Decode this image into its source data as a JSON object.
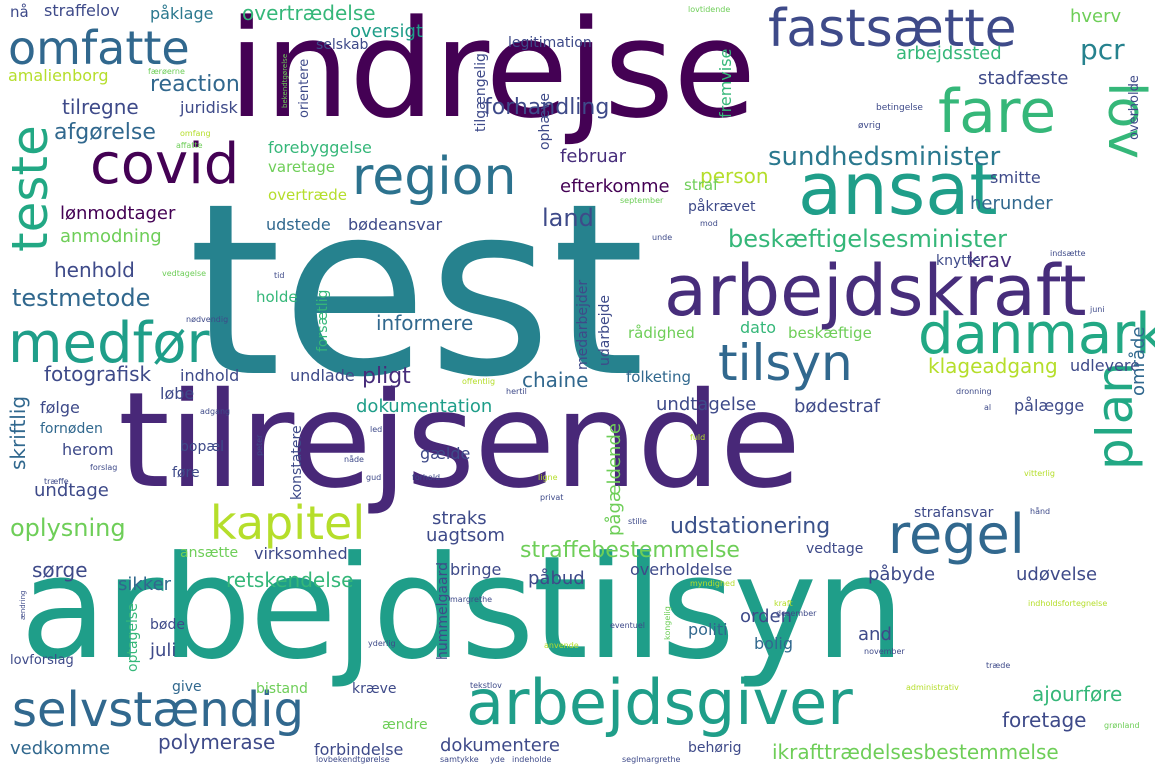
{
  "palette": {
    "purple": "#440154",
    "indigo": "#3e4a89",
    "blue": "#31688e",
    "teal": "#26828e",
    "green": "#1f9e89",
    "mint": "#35b779",
    "lime": "#6ece58",
    "yellow": "#b5de2b"
  },
  "words": [
    {
      "text": "test",
      "color": "#26828e"
    },
    {
      "text": "arbejdstilsyn",
      "color": "#1f9e89"
    },
    {
      "text": "tilrejsende",
      "color": "#482878"
    },
    {
      "text": "indrejse",
      "color": "#440154"
    },
    {
      "text": "arbejdskraft",
      "color": "#472d7b"
    },
    {
      "text": "ansat",
      "color": "#1f9e89"
    },
    {
      "text": "fastsætte",
      "color": "#3e4a89"
    },
    {
      "text": "omfatte",
      "color": "#31688e"
    },
    {
      "text": "covid",
      "color": "#440154"
    },
    {
      "text": "region",
      "color": "#2c728e"
    },
    {
      "text": "fare",
      "color": "#35b779"
    },
    {
      "text": "lov",
      "color": "#35b779"
    },
    {
      "text": "teste",
      "color": "#22a884"
    },
    {
      "text": "medfør",
      "color": "#1f9e89"
    },
    {
      "text": "danmark",
      "color": "#22a884"
    },
    {
      "text": "tilsyn",
      "color": "#31688e"
    },
    {
      "text": "plan",
      "color": "#22a884"
    },
    {
      "text": "regel",
      "color": "#31688e"
    },
    {
      "text": "kapitel",
      "color": "#b5de2b"
    },
    {
      "text": "arbejdsgiver",
      "color": "#1f9e89"
    },
    {
      "text": "selvstændig",
      "color": "#31688e"
    },
    {
      "text": "beskæftigelsesminister",
      "color": "#35b779"
    },
    {
      "text": "sundhedsminister",
      "color": "#2a788e"
    },
    {
      "text": "ikrafttrædelsesbestemmelse",
      "color": "#6ece58"
    },
    {
      "text": "straffebestemmelse",
      "color": "#6ece58"
    },
    {
      "text": "udstationering",
      "color": "#3b528b"
    },
    {
      "text": "forhandling",
      "color": "#3e4a89"
    },
    {
      "text": "overtrædelse",
      "color": "#35b779"
    },
    {
      "text": "pcr",
      "color": "#26828e"
    },
    {
      "text": "hverv",
      "color": "#6ece58"
    },
    {
      "text": "arbejdssted",
      "color": "#35b779"
    },
    {
      "text": "stadfæste",
      "color": "#3e4a89"
    },
    {
      "text": "reaction",
      "color": "#31688e"
    },
    {
      "text": "tilregne",
      "color": "#3e4a89"
    },
    {
      "text": "juridisk",
      "color": "#3e4a89"
    },
    {
      "text": "afgørelse",
      "color": "#31688e"
    },
    {
      "text": "oversigt",
      "color": "#1f9e89"
    },
    {
      "text": "legitimation",
      "color": "#3e4a89"
    },
    {
      "text": "påklage",
      "color": "#2a788e"
    },
    {
      "text": "straffelov",
      "color": "#3e4a89"
    },
    {
      "text": "nå",
      "color": "#3e4a89"
    },
    {
      "text": "selskab",
      "color": "#3e4a89"
    },
    {
      "text": "amalienborg",
      "color": "#b5de2b"
    },
    {
      "text": "forebyggelse",
      "color": "#35b779"
    },
    {
      "text": "varetage",
      "color": "#6ece58"
    },
    {
      "text": "februar",
      "color": "#472d7b"
    },
    {
      "text": "efterkomme",
      "color": "#440154"
    },
    {
      "text": "person",
      "color": "#b5de2b"
    },
    {
      "text": "smitte",
      "color": "#3e4a89"
    },
    {
      "text": "påkrævet",
      "color": "#3e4a89"
    },
    {
      "text": "herunder",
      "color": "#31688e"
    },
    {
      "text": "lønmodtager",
      "color": "#440154"
    },
    {
      "text": "udstede",
      "color": "#31688e"
    },
    {
      "text": "land",
      "color": "#3e4a89"
    },
    {
      "text": "bødeansvar",
      "color": "#3e4a89"
    },
    {
      "text": "anmodning",
      "color": "#6ece58"
    },
    {
      "text": "henhold",
      "color": "#3e4a89"
    },
    {
      "text": "testmetode",
      "color": "#31688e"
    },
    {
      "text": "krav",
      "color": "#472d7b"
    },
    {
      "text": "knytte",
      "color": "#3e4a89"
    },
    {
      "text": "informere",
      "color": "#31688e"
    },
    {
      "text": "holde",
      "color": "#35b779"
    },
    {
      "text": "dato",
      "color": "#35b779"
    },
    {
      "text": "rådighed",
      "color": "#6ece58"
    },
    {
      "text": "beskæftige",
      "color": "#6ece58"
    },
    {
      "text": "klageadgang",
      "color": "#b5de2b"
    },
    {
      "text": "udlevere",
      "color": "#3e4a89"
    },
    {
      "text": "fotografisk",
      "color": "#3e4a89"
    },
    {
      "text": "indhold",
      "color": "#3e4a89"
    },
    {
      "text": "undlade",
      "color": "#3e4a89"
    },
    {
      "text": "pligt",
      "color": "#472d7b"
    },
    {
      "text": "chaine",
      "color": "#31688e"
    },
    {
      "text": "folketing",
      "color": "#31688e"
    },
    {
      "text": "skriftlig",
      "color": "#31688e"
    },
    {
      "text": "løbe",
      "color": "#3e4a89"
    },
    {
      "text": "følge",
      "color": "#3e4a89"
    },
    {
      "text": "dokumentation",
      "color": "#1f9e89"
    },
    {
      "text": "undtagelse",
      "color": "#3e4a89"
    },
    {
      "text": "bødestraf",
      "color": "#3e4a89"
    },
    {
      "text": "pålægge",
      "color": "#3e4a89"
    },
    {
      "text": "område",
      "color": "#31688e"
    },
    {
      "text": "fornøden",
      "color": "#31688e"
    },
    {
      "text": "herom",
      "color": "#3e4a89"
    },
    {
      "text": "bopæl",
      "color": "#3e4a89"
    },
    {
      "text": "undtage",
      "color": "#3e4a89"
    },
    {
      "text": "oplysning",
      "color": "#6ece58"
    },
    {
      "text": "gælde",
      "color": "#3e4a89"
    },
    {
      "text": "føre",
      "color": "#3e4a89"
    },
    {
      "text": "straks",
      "color": "#3e4a89"
    },
    {
      "text": "uagtsom",
      "color": "#3e4a89"
    },
    {
      "text": "pågældende",
      "color": "#6ece58"
    },
    {
      "text": "strafansvar",
      "color": "#3e4a89"
    },
    {
      "text": "sørge",
      "color": "#3e4a89"
    },
    {
      "text": "sikker",
      "color": "#31688e"
    },
    {
      "text": "retskendelse",
      "color": "#35b779"
    },
    {
      "text": "bringe",
      "color": "#3e4a89"
    },
    {
      "text": "påbud",
      "color": "#3e4a89"
    },
    {
      "text": "overholdelse",
      "color": "#3e4a89"
    },
    {
      "text": "påbyde",
      "color": "#3e4a89"
    },
    {
      "text": "udøvelse",
      "color": "#3e4a89"
    },
    {
      "text": "vedtage",
      "color": "#3e4a89"
    },
    {
      "text": "virksomhed",
      "color": "#3e4a89"
    },
    {
      "text": "ansætte",
      "color": "#6ece58"
    },
    {
      "text": "orden",
      "color": "#3e4a89"
    },
    {
      "text": "politi",
      "color": "#31688e"
    },
    {
      "text": "bolig",
      "color": "#31688e"
    },
    {
      "text": "and",
      "color": "#3e4a89"
    },
    {
      "text": "juli",
      "color": "#3e4a89"
    },
    {
      "text": "ajourføre",
      "color": "#35b779"
    },
    {
      "text": "give",
      "color": "#31688e"
    },
    {
      "text": "bistand",
      "color": "#6ece58"
    },
    {
      "text": "kræve",
      "color": "#3e4a89"
    },
    {
      "text": "foretage",
      "color": "#3e4a89"
    },
    {
      "text": "polymerase",
      "color": "#3e4a89"
    },
    {
      "text": "vedkomme",
      "color": "#31688e"
    },
    {
      "text": "forbindelse",
      "color": "#3e4a89"
    },
    {
      "text": "dokumentere",
      "color": "#3e4a89"
    },
    {
      "text": "behørig",
      "color": "#3e4a89"
    },
    {
      "text": "ændre",
      "color": "#6ece58"
    },
    {
      "text": "lovforslag",
      "color": "#3e4a89"
    },
    {
      "text": "hummelgaard",
      "color": "#3e4a89"
    },
    {
      "text": "optagelse",
      "color": "#35b779"
    },
    {
      "text": "bøde",
      "color": "#3e4a89"
    },
    {
      "text": "konstatere",
      "color": "#3e4a89"
    },
    {
      "text": "forsætlig",
      "color": "#35b779"
    },
    {
      "text": "medarbejder",
      "color": "#3e4a89"
    },
    {
      "text": "udarbejde",
      "color": "#3e4a89"
    },
    {
      "text": "straf",
      "color": "#6ece58"
    },
    {
      "text": "overtræde",
      "color": "#b5de2b"
    },
    {
      "text": "fremvise",
      "color": "#35b779"
    },
    {
      "text": "ophæve",
      "color": "#3e4a89"
    },
    {
      "text": "tilgængelig",
      "color": "#3e4a89"
    },
    {
      "text": "orientere",
      "color": "#3e4a89"
    },
    {
      "text": "overholde",
      "color": "#3e4a89"
    },
    {
      "text": "betingelse",
      "color": "#3e4a89"
    },
    {
      "text": "øvrig",
      "color": "#3e4a89"
    },
    {
      "text": "lovtidende",
      "color": "#6ece58"
    },
    {
      "text": "færøerne",
      "color": "#6ece58"
    },
    {
      "text": "omfang",
      "color": "#b5de2b"
    },
    {
      "text": "affatte",
      "color": "#6ece58"
    },
    {
      "text": "bekendtgørelse",
      "color": "#6ece58"
    },
    {
      "text": "september",
      "color": "#6ece58"
    },
    {
      "text": "mod",
      "color": "#3e4a89"
    },
    {
      "text": "unde",
      "color": "#3e4a89"
    },
    {
      "text": "tid",
      "color": "#3e4a89"
    },
    {
      "text": "vedtagelse",
      "color": "#6ece58"
    },
    {
      "text": "nødvendig",
      "color": "#3e4a89"
    },
    {
      "text": "indsætte",
      "color": "#3e4a89"
    },
    {
      "text": "juni",
      "color": "#3e4a89"
    },
    {
      "text": "offentlig",
      "color": "#b5de2b"
    },
    {
      "text": "hertil",
      "color": "#3e4a89"
    },
    {
      "text": "dronning",
      "color": "#3e4a89"
    },
    {
      "text": "al",
      "color": "#3e4a89"
    },
    {
      "text": "adgang",
      "color": "#3e4a89"
    },
    {
      "text": "led",
      "color": "#3e4a89"
    },
    {
      "text": "peter",
      "color": "#3e4a89"
    },
    {
      "text": "fuld",
      "color": "#b5de2b"
    },
    {
      "text": "forslag",
      "color": "#3e4a89"
    },
    {
      "text": "træffe",
      "color": "#3e4a89"
    },
    {
      "text": "nåde",
      "color": "#3e4a89"
    },
    {
      "text": "gud",
      "color": "#3e4a89"
    },
    {
      "text": "forhold",
      "color": "#3e4a89"
    },
    {
      "text": "vitterlig",
      "color": "#b5de2b"
    },
    {
      "text": "ligne",
      "color": "#b5de2b"
    },
    {
      "text": "privat",
      "color": "#3e4a89"
    },
    {
      "text": "stille",
      "color": "#3e4a89"
    },
    {
      "text": "hånd",
      "color": "#3e4a89"
    },
    {
      "text": "myndighed",
      "color": "#b5de2b"
    },
    {
      "text": "margrethe",
      "color": "#3e4a89"
    },
    {
      "text": "kongelig",
      "color": "#6ece58"
    },
    {
      "text": "kraft",
      "color": "#b5de2b"
    },
    {
      "text": "indholdsfortegnelse",
      "color": "#b5de2b"
    },
    {
      "text": "ændring",
      "color": "#3e4a89"
    },
    {
      "text": "december",
      "color": "#3e4a89"
    },
    {
      "text": "eventuel",
      "color": "#3e4a89"
    },
    {
      "text": "yderlig",
      "color": "#3e4a89"
    },
    {
      "text": "anvende",
      "color": "#b5de2b"
    },
    {
      "text": "november",
      "color": "#3e4a89"
    },
    {
      "text": "træde",
      "color": "#3e4a89"
    },
    {
      "text": "tekstlov",
      "color": "#3e4a89"
    },
    {
      "text": "administrativ",
      "color": "#b5de2b"
    },
    {
      "text": "grønland",
      "color": "#6ece58"
    },
    {
      "text": "lovbekendtgørelse",
      "color": "#3e4a89"
    },
    {
      "text": "samtykke",
      "color": "#3e4a89"
    },
    {
      "text": "yde",
      "color": "#3e4a89"
    },
    {
      "text": "indeholde",
      "color": "#3e4a89"
    },
    {
      "text": "seglmargrethe",
      "color": "#3e4a89"
    }
  ]
}
